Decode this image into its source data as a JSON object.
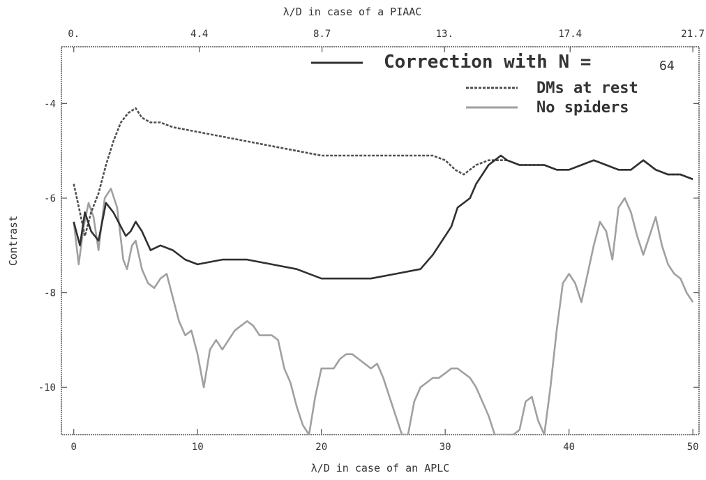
{
  "chart_data": {
    "type": "line",
    "xlabel": "λ/D in case of an APLC",
    "top_xlabel": "λ/D in case of a PIAAC",
    "ylabel": "Contrast",
    "xlim": [
      -1,
      50.5
    ],
    "ylim": [
      -11,
      -2.8
    ],
    "x_ticks": [
      0,
      10,
      20,
      30,
      40,
      50
    ],
    "x_tick_labels": [
      "0",
      "10",
      "20",
      "30",
      "40",
      "50"
    ],
    "y_ticks": [
      -4,
      -6,
      -8,
      -10
    ],
    "y_tick_labels": [
      "-4",
      "-6",
      "-8",
      "-10"
    ],
    "top_ticks": [
      0,
      10.14,
      20.05,
      29.95,
      40.09,
      50.0
    ],
    "top_tick_labels": [
      "0.",
      "4.4",
      "8.7",
      "13.",
      "17.4",
      "21.7"
    ],
    "grid": false,
    "legend_position": "top-right",
    "legend_title": "Correction with N =",
    "legend_n": "64",
    "series": [
      {
        "name": "Correction with N =",
        "color": "#303030",
        "dash": "none",
        "x": [
          0,
          0.5,
          0.9,
          1.4,
          2.0,
          2.6,
          3.2,
          3.8,
          4.2,
          4.6,
          5.0,
          5.5,
          6.2,
          7.0,
          8.0,
          9.0,
          10.0,
          12.0,
          14.0,
          16.0,
          18.0,
          20.0,
          22.0,
          24.0,
          26.0,
          28.0,
          29.0,
          30.0,
          30.5,
          31.0,
          31.5,
          32.0,
          32.5,
          33.0,
          33.5,
          34.0,
          34.5,
          35.0,
          36.0,
          37.0,
          38.0,
          39.0,
          40.0,
          41.0,
          42.0,
          43.0,
          44.0,
          45.0,
          45.5,
          46.0,
          47.0,
          48.0,
          49.0,
          50.0
        ],
        "values": [
          -6.5,
          -7.0,
          -6.3,
          -6.7,
          -6.9,
          -6.1,
          -6.3,
          -6.6,
          -6.8,
          -6.7,
          -6.5,
          -6.7,
          -7.1,
          -7.0,
          -7.1,
          -7.3,
          -7.4,
          -7.3,
          -7.3,
          -7.4,
          -7.5,
          -7.7,
          -7.7,
          -7.7,
          -7.6,
          -7.5,
          -7.2,
          -6.8,
          -6.6,
          -6.2,
          -6.1,
          -6.0,
          -5.7,
          -5.5,
          -5.3,
          -5.2,
          -5.1,
          -5.2,
          -5.3,
          -5.3,
          -5.3,
          -5.4,
          -5.4,
          -5.3,
          -5.2,
          -5.3,
          -5.4,
          -5.4,
          -5.3,
          -5.2,
          -5.4,
          -5.5,
          -5.5,
          -5.6
        ]
      },
      {
        "name": "DMs at rest",
        "color": "#505050",
        "dash": "4,2",
        "x": [
          0,
          0.5,
          0.9,
          1.4,
          2.0,
          2.6,
          3.2,
          3.8,
          4.4,
          5.0,
          5.5,
          6.2,
          7.0,
          8.0,
          10.0,
          12.0,
          14.0,
          16.0,
          18.0,
          20.0,
          22.0,
          24.0,
          26.0,
          28.0,
          29.0,
          30.0,
          30.8,
          31.5,
          32.5,
          33.5,
          34.5,
          35.0,
          36.0,
          37.0,
          38.0,
          39.0,
          40.0,
          41.0,
          42.0,
          43.0,
          44.0,
          45.0,
          45.5,
          46.0,
          47.0,
          48.0,
          49.0,
          50.0
        ],
        "values": [
          -5.7,
          -6.3,
          -6.8,
          -6.3,
          -5.9,
          -5.3,
          -4.8,
          -4.4,
          -4.2,
          -4.1,
          -4.3,
          -4.4,
          -4.4,
          -4.5,
          -4.6,
          -4.7,
          -4.8,
          -4.9,
          -5.0,
          -5.1,
          -5.1,
          -5.1,
          -5.1,
          -5.1,
          -5.1,
          -5.2,
          -5.4,
          -5.5,
          -5.3,
          -5.2,
          -5.2,
          -5.2,
          -5.3,
          -5.3,
          -5.3,
          -5.4,
          -5.4,
          -5.3,
          -5.2,
          -5.3,
          -5.4,
          -5.4,
          -5.3,
          -5.2,
          -5.4,
          -5.5,
          -5.5,
          -5.6
        ]
      },
      {
        "name": "No spiders",
        "color": "#a0a0a0",
        "dash": "none",
        "x": [
          0,
          0.4,
          0.8,
          1.2,
          1.6,
          2.0,
          2.5,
          3.0,
          3.5,
          4.0,
          4.3,
          4.7,
          5.0,
          5.5,
          6.0,
          6.5,
          7.0,
          7.5,
          8.0,
          8.5,
          9.0,
          9.5,
          10.0,
          10.5,
          11.0,
          11.5,
          12.0,
          12.5,
          13.0,
          13.5,
          14.0,
          14.5,
          15.0,
          15.5,
          16.0,
          16.5,
          17.0,
          17.5,
          18.0,
          18.5,
          19.0,
          19.5,
          20.0,
          20.5,
          21.0,
          21.5,
          22.0,
          22.5,
          23.0,
          23.5,
          24.0,
          24.5,
          25.0,
          25.5,
          26.0,
          26.5,
          27.0,
          27.5,
          28.0,
          28.5,
          29.0,
          29.5,
          30.0,
          30.5,
          31.0,
          31.5,
          32.0,
          32.5,
          33.0,
          33.5,
          34.0,
          34.5,
          35.0,
          35.5,
          36.0,
          36.5,
          37.0,
          37.5,
          38.0,
          38.5,
          39.0,
          39.5,
          40.0,
          40.5,
          41.0,
          41.5,
          42.0,
          42.5,
          43.0,
          43.5,
          44.0,
          44.5,
          45.0,
          45.5,
          46.0,
          46.5,
          47.0,
          47.5,
          48.0,
          48.5,
          49.0,
          49.5,
          50.0
        ],
        "values": [
          -6.5,
          -7.4,
          -6.6,
          -6.1,
          -6.4,
          -7.1,
          -6.0,
          -5.8,
          -6.2,
          -7.3,
          -7.5,
          -7.0,
          -6.9,
          -7.5,
          -7.8,
          -7.9,
          -7.7,
          -7.6,
          -8.1,
          -8.6,
          -8.9,
          -8.8,
          -9.3,
          -10.0,
          -9.2,
          -9.0,
          -9.2,
          -9.0,
          -8.8,
          -8.7,
          -8.6,
          -8.7,
          -8.9,
          -8.9,
          -8.9,
          -9.0,
          -9.6,
          -9.9,
          -10.4,
          -10.8,
          -11.0,
          -10.2,
          -9.6,
          -9.6,
          -9.6,
          -9.4,
          -9.3,
          -9.3,
          -9.4,
          -9.5,
          -9.6,
          -9.5,
          -9.8,
          -10.2,
          -10.6,
          -11.0,
          -11.0,
          -10.3,
          -10.0,
          -9.9,
          -9.8,
          -9.8,
          -9.7,
          -9.6,
          -9.6,
          -9.7,
          -9.8,
          -10.0,
          -10.3,
          -10.6,
          -11.0,
          -11.0,
          -11.0,
          -11.0,
          -10.9,
          -10.3,
          -10.2,
          -10.7,
          -11.0,
          -10.0,
          -8.8,
          -7.8,
          -7.6,
          -7.8,
          -8.2,
          -7.6,
          -7.0,
          -6.5,
          -6.7,
          -7.3,
          -6.2,
          -6.0,
          -6.3,
          -6.8,
          -7.2,
          -6.8,
          -6.4,
          -7.0,
          -7.4,
          -7.6,
          -7.7,
          -8.0,
          -8.2
        ]
      }
    ]
  }
}
